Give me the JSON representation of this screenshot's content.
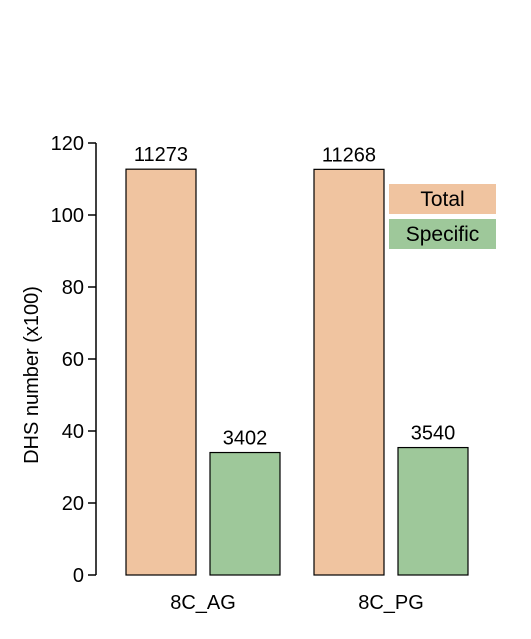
{
  "chart_data": {
    "type": "bar",
    "categories": [
      "8C_AG",
      "8C_PG"
    ],
    "series": [
      {
        "name": "Total",
        "values": [
          112.73,
          112.68
        ],
        "labels": [
          "11273",
          "11268"
        ],
        "color": "#f0c4a0"
      },
      {
        "name": "Specific",
        "values": [
          34.02,
          35.4
        ],
        "labels": [
          "3402",
          "3540"
        ],
        "color": "#9ec89a"
      }
    ],
    "title": "",
    "xlabel": "",
    "ylabel": "DHS number (x100)",
    "ylim": [
      0,
      120
    ],
    "yticks": [
      "0",
      "20",
      "40",
      "60",
      "80",
      "100",
      "120"
    ],
    "grid": false,
    "legend_position": "right"
  }
}
